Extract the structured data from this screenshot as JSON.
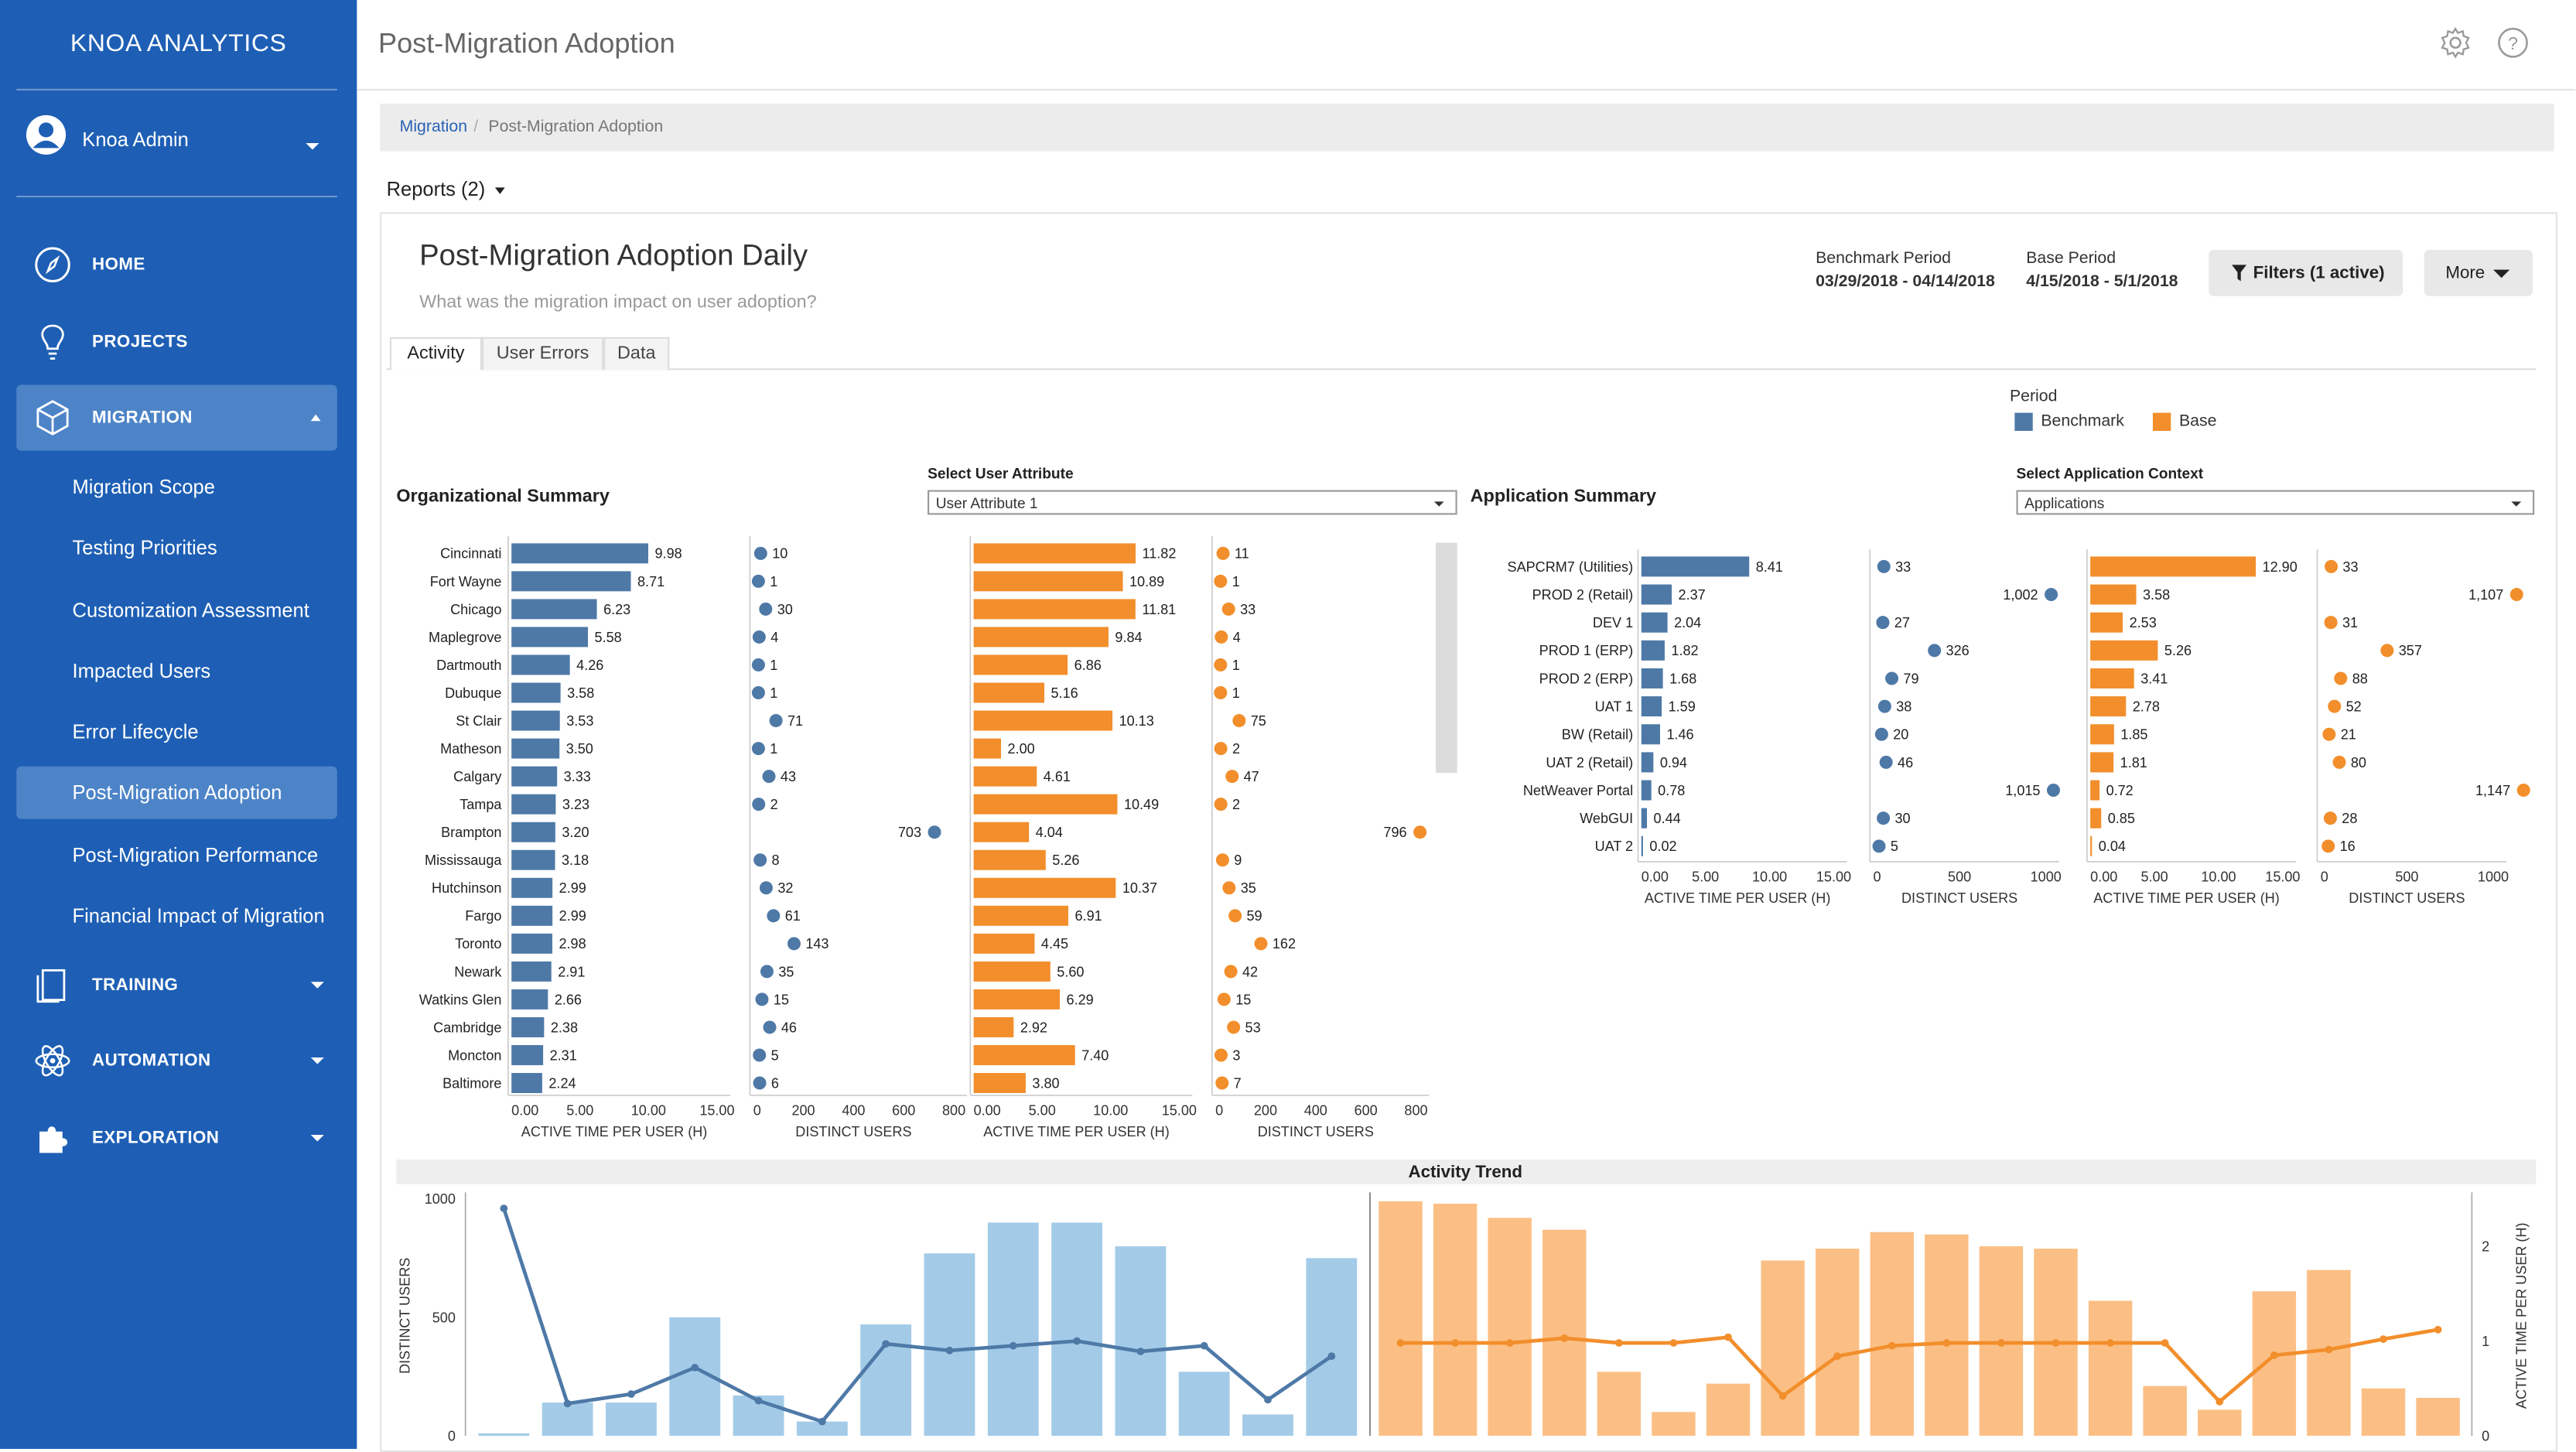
{
  "app": {
    "brand": "KNOA ANALYTICS",
    "user": "Knoa Admin",
    "page_title": "Post-Migration Adoption"
  },
  "nav": {
    "home": "HOME",
    "projects": "PROJECTS",
    "migration": "MIGRATION",
    "sub": [
      "Migration Scope",
      "Testing Priorities",
      "Customization Assessment",
      "Impacted Users",
      "Error Lifecycle",
      "Post-Migration Adoption",
      "Post-Migration Performance",
      "Financial Impact of Migration"
    ],
    "training": "TRAINING",
    "automation": "AUTOMATION",
    "exploration": "EXPLORATION"
  },
  "breadcrumb": {
    "parent": "Migration",
    "sep": "/",
    "current": "Post-Migration Adoption"
  },
  "reports_label": "Reports (2)",
  "report": {
    "title": "Post-Migration Adoption Daily",
    "subtitle": "What was the migration impact on user adoption?",
    "benchmark_label": "Benchmark Period",
    "benchmark_value": "03/29/2018 - 04/14/2018",
    "base_label": "Base Period",
    "base_value": "4/15/2018 - 5/1/2018",
    "filters": "Filters (1 active)",
    "more": "More"
  },
  "tabs": [
    "Activity",
    "User Errors",
    "Data"
  ],
  "legend": {
    "title": "Period",
    "benchmark": "Benchmark",
    "base": "Base"
  },
  "colors": {
    "sidebar": "#1e5fb5",
    "benchmark": "#4e79a7",
    "base": "#f28e2b",
    "benchmark_light": "#a3cbe8",
    "base_light": "#fbbf85"
  },
  "org": {
    "title": "Organizational Summary",
    "select_label": "Select User Attribute",
    "select_value": "User Attribute 1"
  },
  "app_summary": {
    "title": "Application Summary",
    "select_label": "Select Application Context",
    "select_value": "Applications"
  },
  "chart_data": [
    {
      "type": "bar",
      "title": "Organizational Summary",
      "categories": [
        "Cincinnati",
        "Fort Wayne",
        "Chicago",
        "Maplegrove",
        "Dartmouth",
        "Dubuque",
        "St Clair",
        "Matheson",
        "Calgary",
        "Tampa",
        "Brampton",
        "Mississauga",
        "Hutchinson",
        "Fargo",
        "Toronto",
        "Newark",
        "Watkins Glen",
        "Cambridge",
        "Moncton",
        "Baltimore"
      ],
      "panels": [
        {
          "xlabel": "ACTIVE TIME PER USER (H)",
          "mark": "bar",
          "series": "Benchmark",
          "xlim": [
            0,
            15
          ],
          "ticks": [
            "0.00",
            "5.00",
            "10.00",
            "15.00"
          ],
          "values": [
            9.98,
            8.71,
            6.23,
            5.58,
            4.26,
            3.58,
            3.53,
            3.5,
            3.33,
            3.23,
            3.2,
            3.18,
            2.99,
            2.99,
            2.98,
            2.91,
            2.66,
            2.38,
            2.31,
            2.24
          ]
        },
        {
          "xlabel": "DISTINCT USERS",
          "mark": "dot",
          "series": "Benchmark",
          "xlim": [
            0,
            800
          ],
          "ticks": [
            "0",
            "200",
            "400",
            "600",
            "800"
          ],
          "values": [
            10,
            1,
            30,
            4,
            1,
            1,
            71,
            1,
            43,
            2,
            703,
            8,
            32,
            61,
            143,
            35,
            15,
            46,
            5,
            6
          ]
        },
        {
          "xlabel": "ACTIVE TIME PER USER (H)",
          "mark": "bar",
          "series": "Base",
          "xlim": [
            0,
            15
          ],
          "ticks": [
            "0.00",
            "5.00",
            "10.00",
            "15.00"
          ],
          "values": [
            11.82,
            10.89,
            11.81,
            9.84,
            6.86,
            5.16,
            10.13,
            2.0,
            4.61,
            10.49,
            4.04,
            5.26,
            10.37,
            6.91,
            4.45,
            5.6,
            6.29,
            2.92,
            7.4,
            3.8
          ]
        },
        {
          "xlabel": "DISTINCT USERS",
          "mark": "dot",
          "series": "Base",
          "xlim": [
            0,
            800
          ],
          "ticks": [
            "0",
            "200",
            "400",
            "600",
            "800"
          ],
          "values": [
            11,
            1,
            33,
            4,
            1,
            1,
            75,
            2,
            47,
            2,
            796,
            9,
            35,
            59,
            162,
            42,
            15,
            53,
            3,
            7
          ]
        }
      ]
    },
    {
      "type": "bar",
      "title": "Application Summary",
      "categories": [
        "SAPCRM7 (Utilities)",
        "PROD 2 (Retail)",
        "DEV 1",
        "PROD 1 (ERP)",
        "PROD 2 (ERP)",
        "UAT 1",
        "BW (Retail)",
        "UAT 2 (Retail)",
        "NetWeaver Portal",
        "WebGUI",
        "UAT 2"
      ],
      "panels": [
        {
          "xlabel": "ACTIVE TIME PER USER (H)",
          "mark": "bar",
          "series": "Benchmark",
          "xlim": [
            0,
            15
          ],
          "ticks": [
            "0.00",
            "5.00",
            "10.00",
            "15.00"
          ],
          "values": [
            8.41,
            2.37,
            2.04,
            1.82,
            1.68,
            1.59,
            1.46,
            0.94,
            0.78,
            0.44,
            0.02
          ]
        },
        {
          "xlabel": "DISTINCT USERS",
          "mark": "dot",
          "series": "Benchmark",
          "xlim": [
            0,
            1000
          ],
          "ticks": [
            "0",
            "500",
            "1000"
          ],
          "values": [
            33,
            1002,
            27,
            326,
            79,
            38,
            20,
            46,
            1015,
            30,
            5
          ]
        },
        {
          "xlabel": "ACTIVE TIME PER USER (H)",
          "mark": "bar",
          "series": "Base",
          "xlim": [
            0,
            15
          ],
          "ticks": [
            "0.00",
            "5.00",
            "10.00",
            "15.00"
          ],
          "values": [
            12.9,
            3.58,
            2.53,
            5.26,
            3.41,
            2.78,
            1.85,
            1.81,
            0.72,
            0.85,
            0.04
          ]
        },
        {
          "xlabel": "DISTINCT USERS",
          "mark": "dot",
          "series": "Base",
          "xlim": [
            0,
            1000
          ],
          "ticks": [
            "0",
            "500",
            "1000"
          ],
          "values": [
            33,
            1107,
            31,
            357,
            88,
            52,
            21,
            80,
            1147,
            28,
            16
          ]
        }
      ]
    },
    {
      "type": "bar",
      "title": "Activity Trend",
      "ylabel_left": "DISTINCT USERS",
      "ylabel_right": "ACTIVE TIME PER USER (H)",
      "ylim_left": [
        0,
        1000
      ],
      "yticks_left": [
        "0",
        "500",
        "1000"
      ],
      "ylim_right": [
        0,
        2.5
      ],
      "yticks_right": [
        "0",
        "1",
        "2"
      ],
      "series": [
        {
          "name": "Benchmark",
          "bars": [
            10,
            140,
            140,
            500,
            170,
            60,
            470,
            770,
            900,
            900,
            800,
            270,
            90,
            750
          ],
          "line": [
            2.4,
            0.34,
            0.44,
            0.72,
            0.37,
            0.15,
            0.97,
            0.9,
            0.95,
            1.0,
            0.89,
            0.95,
            0.38,
            0.84
          ]
        },
        {
          "name": "Base",
          "bars": [
            990,
            980,
            920,
            870,
            270,
            100,
            220,
            740,
            790,
            860,
            850,
            800,
            790,
            570,
            210,
            110,
            610,
            700,
            200,
            160
          ],
          "line": [
            0.98,
            0.98,
            0.98,
            1.03,
            0.98,
            0.98,
            1.04,
            0.42,
            0.84,
            0.95,
            0.98,
            0.98,
            0.98,
            0.98,
            0.98,
            0.36,
            0.85,
            0.91,
            1.02,
            1.12
          ]
        }
      ]
    }
  ]
}
